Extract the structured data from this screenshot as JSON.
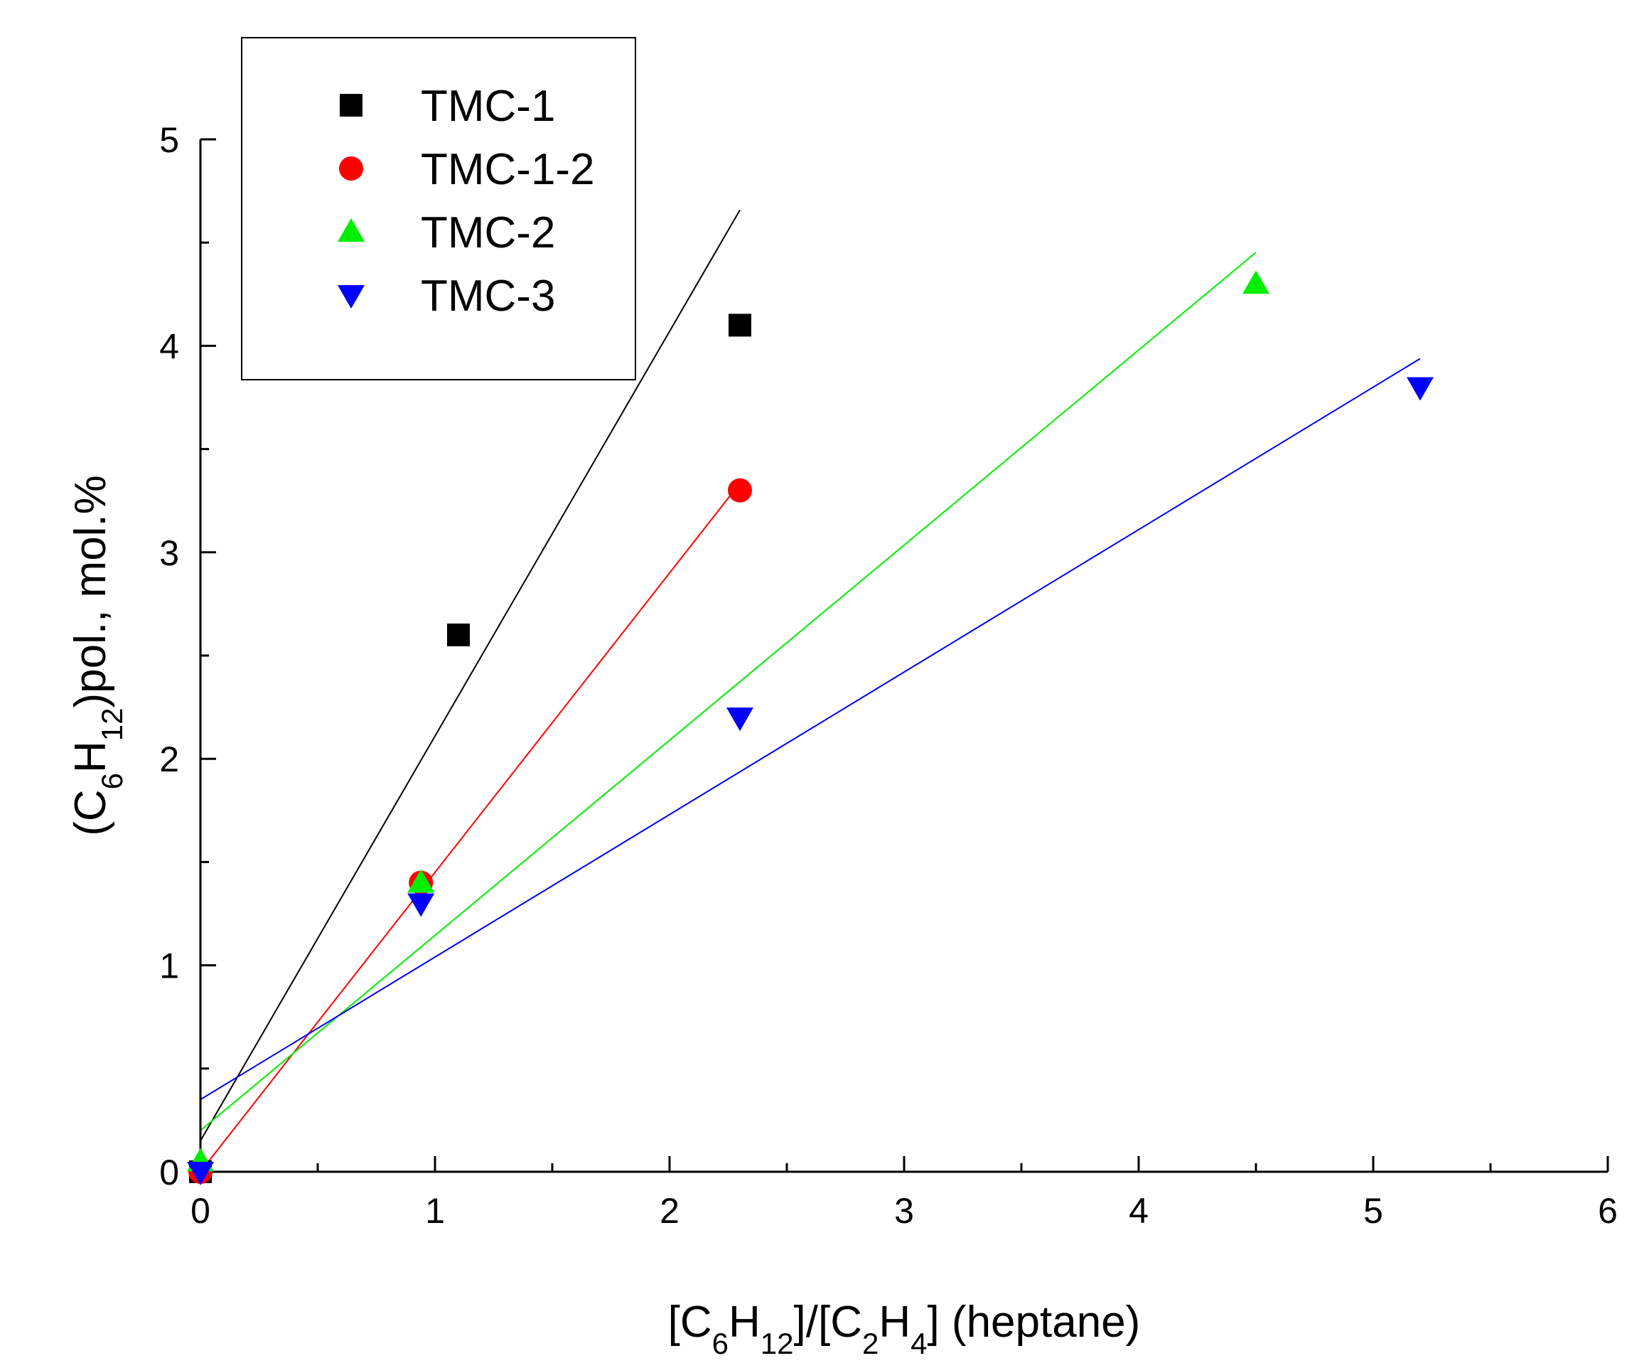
{
  "chart_data": {
    "type": "scatter",
    "title": "",
    "xlabel": {
      "parts": [
        {
          "t": "[C"
        },
        {
          "t": "6",
          "sub": true
        },
        {
          "t": "H"
        },
        {
          "t": "12",
          "sub": true
        },
        {
          "t": "]/[C"
        },
        {
          "t": "2",
          "sub": true
        },
        {
          "t": "H"
        },
        {
          "t": "4",
          "sub": true
        },
        {
          "t": "] (heptane)"
        }
      ]
    },
    "ylabel": {
      "parts": [
        {
          "t": "(C"
        },
        {
          "t": "6",
          "sub": true
        },
        {
          "t": "H"
        },
        {
          "t": "12",
          "sub": true
        },
        {
          "t": ")pol., mol.%"
        }
      ]
    },
    "xlim": [
      0,
      6
    ],
    "ylim": [
      0,
      5
    ],
    "x_ticks": [
      0,
      1,
      2,
      3,
      4,
      5,
      6
    ],
    "y_ticks": [
      0,
      1,
      2,
      3,
      4,
      5
    ],
    "x_tick_labels": [
      "0",
      "1",
      "2",
      "3",
      "4",
      "5",
      "6"
    ],
    "y_tick_labels": [
      "0",
      "1",
      "2",
      "3",
      "4",
      "5"
    ],
    "grid": false,
    "legend": "top-left",
    "series": [
      {
        "name": "TMC-1",
        "color": "#000000",
        "marker": "square",
        "x": [
          0,
          1.1,
          2.3
        ],
        "y": [
          0,
          2.6,
          4.1
        ],
        "fit": {
          "x0": 0,
          "x1": 2.3,
          "intercept": 0.15,
          "slope": 1.96
        }
      },
      {
        "name": "TMC-1-2",
        "color": "#ff0000",
        "marker": "circle",
        "x": [
          0,
          0.94,
          2.3
        ],
        "y": [
          0,
          1.4,
          3.3
        ],
        "fit": {
          "x0": 0,
          "x1": 2.3,
          "intercept": 0.0,
          "slope": 1.45
        }
      },
      {
        "name": "TMC-2",
        "color": "#00ee00",
        "marker": "triangle-up",
        "x": [
          0,
          0.94,
          4.5
        ],
        "y": [
          0.05,
          1.4,
          4.3
        ],
        "fit": {
          "x0": 0,
          "x1": 4.5,
          "intercept": 0.2,
          "slope": 0.945
        }
      },
      {
        "name": "TMC-3",
        "color": "#0000ff",
        "marker": "triangle-down",
        "x": [
          0,
          0.94,
          2.3,
          5.2
        ],
        "y": [
          0,
          1.3,
          2.2,
          3.8
        ],
        "fit": {
          "x0": 0,
          "x1": 5.2,
          "intercept": 0.35,
          "slope": 0.69
        }
      }
    ]
  }
}
